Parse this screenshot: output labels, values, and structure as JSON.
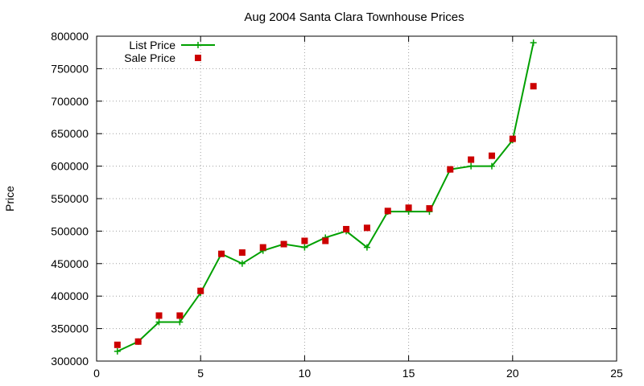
{
  "chart_data": {
    "type": "line",
    "title": "Aug 2004 Santa Clara Townhouse Prices",
    "xlabel": "",
    "ylabel": "Price",
    "xlim": [
      0,
      25
    ],
    "ylim": [
      300000,
      800000
    ],
    "xticks": [
      0,
      5,
      10,
      15,
      20,
      25
    ],
    "yticks": [
      300000,
      350000,
      400000,
      450000,
      500000,
      550000,
      600000,
      650000,
      700000,
      750000,
      800000
    ],
    "grid": true,
    "legend": "top-left",
    "series": [
      {
        "name": "List Price",
        "style": "line-plus",
        "color": "#00a000",
        "x": [
          1,
          2,
          3,
          4,
          5,
          6,
          7,
          8,
          9,
          10,
          11,
          12,
          13,
          14,
          15,
          16,
          17,
          18,
          19,
          20,
          21
        ],
        "y": [
          315000,
          330000,
          360000,
          360000,
          405000,
          465000,
          450000,
          470000,
          480000,
          475000,
          490000,
          500000,
          475000,
          530000,
          530000,
          530000,
          595000,
          600000,
          600000,
          640000,
          790000
        ]
      },
      {
        "name": "Sale Price",
        "style": "square-points",
        "color": "#cc0000",
        "x": [
          1,
          2,
          3,
          4,
          5,
          6,
          7,
          8,
          9,
          10,
          11,
          12,
          13,
          14,
          15,
          16,
          17,
          18,
          19,
          20,
          21
        ],
        "y": [
          325000,
          330000,
          370000,
          370000,
          408000,
          465000,
          467000,
          475000,
          480000,
          485000,
          485000,
          503000,
          505000,
          531000,
          536000,
          535000,
          595000,
          610000,
          616000,
          642000,
          723000
        ]
      }
    ]
  }
}
